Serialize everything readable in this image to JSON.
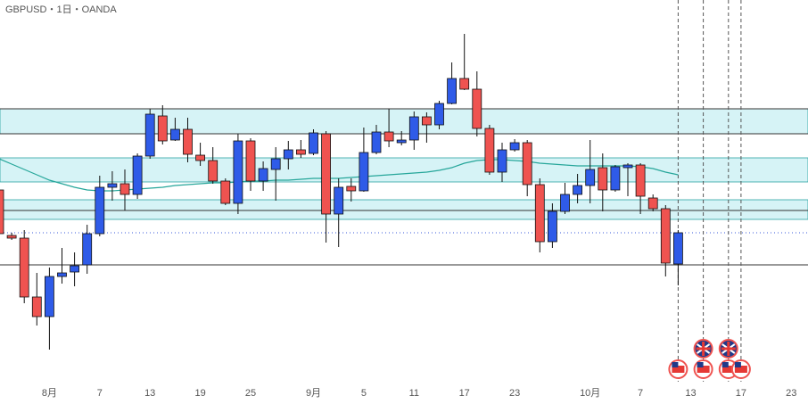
{
  "chart_data": {
    "type": "candlestick",
    "title": "GBPUSD・1日・OANDA",
    "categories": [
      null,
      null,
      null,
      null,
      "8月",
      null,
      null,
      null,
      "7",
      null,
      null,
      null,
      "13",
      null,
      null,
      null,
      "19",
      null,
      null,
      null,
      "25",
      null,
      null,
      null,
      null,
      "9月",
      null,
      null,
      null,
      "5",
      null,
      null,
      null,
      "11",
      null,
      null,
      null,
      "17",
      null,
      null,
      null,
      "23",
      null,
      null,
      null,
      null,
      null,
      "10月",
      null,
      null,
      null,
      "7",
      null,
      null,
      null,
      "13",
      null,
      null,
      null,
      "17",
      null,
      null,
      null,
      "23"
    ],
    "open": [
      1.3074,
      1.2972,
      1.2966,
      1.2834,
      1.279,
      1.288,
      1.289,
      1.2906,
      1.2976,
      1.308,
      1.3088,
      1.3064,
      1.315,
      1.324,
      1.3186,
      1.321,
      1.3152,
      1.314,
      1.3094,
      1.3044,
      1.3184,
      1.3094,
      1.312,
      1.3144,
      1.3164,
      1.3156,
      1.32,
      1.302,
      1.3082,
      1.3072,
      1.3158,
      1.3204,
      1.318,
      1.3186,
      1.3238,
      1.322,
      1.3268,
      1.3324,
      1.33,
      1.3212,
      1.3114,
      1.3164,
      1.318,
      1.3086,
      1.2958,
      1.3026,
      1.3064,
      1.3084,
      1.3124,
      1.3074,
      1.3124,
      1.313,
      1.3056,
      1.3032,
      1.2908,
      null,
      null,
      null,
      null,
      null,
      null,
      null,
      null,
      null
    ],
    "high": [
      1.3084,
      1.2978,
      1.2984,
      1.2888,
      1.29,
      1.2944,
      1.2934,
      1.2996,
      1.3106,
      1.3116,
      1.312,
      1.3156,
      1.3256,
      1.3264,
      1.3236,
      1.3236,
      1.318,
      1.317,
      1.31,
      1.32,
      1.319,
      1.3138,
      1.317,
      1.3184,
      1.3186,
      1.321,
      1.3206,
      1.31,
      1.31,
      1.3214,
      1.322,
      1.3256,
      1.3206,
      1.325,
      1.3248,
      1.3274,
      1.336,
      1.3424,
      1.334,
      1.322,
      1.318,
      1.3188,
      1.3186,
      1.31,
      1.3044,
      1.309,
      1.311,
      1.3186,
      1.3156,
      1.313,
      1.3134,
      1.3134,
      1.3064,
      1.304,
      1.2984,
      null,
      null,
      null,
      null,
      null,
      null,
      null,
      null,
      null
    ],
    "low": [
      1.297,
      1.2962,
      1.282,
      1.277,
      1.2716,
      1.2864,
      1.2858,
      1.2886,
      1.297,
      1.305,
      1.3028,
      1.3054,
      1.3144,
      1.3176,
      1.3184,
      1.3136,
      1.3128,
      1.3088,
      1.304,
      1.302,
      1.3072,
      1.3072,
      1.305,
      1.312,
      1.3146,
      1.3152,
      1.2956,
      1.2946,
      1.3048,
      1.307,
      1.3154,
      1.317,
      1.3174,
      1.3164,
      1.318,
      1.321,
      1.3266,
      1.3298,
      1.3194,
      1.3108,
      1.3092,
      1.316,
      1.306,
      1.2934,
      1.2944,
      1.302,
      1.3044,
      1.3044,
      1.3026,
      1.307,
      1.306,
      1.302,
      1.3026,
      1.288,
      1.286,
      null,
      null,
      null,
      null,
      null,
      null,
      null,
      null,
      null
    ],
    "close": [
      1.2976,
      1.2966,
      1.2834,
      1.279,
      1.288,
      1.2888,
      1.2904,
      1.2976,
      1.308,
      1.3088,
      1.3064,
      1.315,
      1.3244,
      1.3184,
      1.321,
      1.3154,
      1.314,
      1.3094,
      1.3044,
      1.3184,
      1.3094,
      1.3122,
      1.3144,
      1.3164,
      1.3154,
      1.3202,
      1.302,
      1.308,
      1.3072,
      1.3158,
      1.3204,
      1.3184,
      1.3186,
      1.3238,
      1.322,
      1.3268,
      1.3324,
      1.33,
      1.3212,
      1.3114,
      1.3164,
      1.318,
      1.3086,
      1.2958,
      1.3026,
      1.3064,
      1.3084,
      1.312,
      1.3074,
      1.3126,
      1.313,
      1.306,
      1.3032,
      1.291,
      1.2978,
      null,
      null,
      null,
      null,
      null,
      null,
      null,
      null,
      null
    ],
    "ma": [
      1.3144,
      1.3132,
      1.312,
      1.3108,
      1.3096,
      1.3088,
      1.308,
      1.3074,
      1.3072,
      1.3072,
      1.3074,
      1.3076,
      1.3078,
      1.308,
      1.3084,
      1.3086,
      1.3088,
      1.309,
      1.309,
      1.3092,
      1.3094,
      1.3094,
      1.3096,
      1.3096,
      1.3098,
      1.31,
      1.31,
      1.31,
      1.3102,
      1.3104,
      1.3106,
      1.3108,
      1.311,
      1.3112,
      1.3114,
      1.3118,
      1.3124,
      1.3134,
      1.314,
      1.3142,
      1.3142,
      1.314,
      1.3138,
      1.3134,
      1.3132,
      1.313,
      1.3128,
      1.3128,
      1.3128,
      1.3128,
      1.3128,
      1.3126,
      1.3122,
      1.3114,
      1.3108,
      null,
      null,
      null,
      null,
      null,
      null,
      null,
      null,
      null
    ],
    "up_color": "#2f5be8",
    "down_color": "#ef5350",
    "ma_color": "#26a69a",
    "zones": [
      [
        1.3256,
        1.32
      ],
      [
        1.3146,
        1.3092
      ],
      [
        1.3052,
        1.3008
      ]
    ],
    "levels": [
      1.3256,
      1.32,
      1.3028,
      1.2906
    ],
    "last_price": 1.2978,
    "events": [
      54,
      56,
      58,
      59
    ],
    "uk_events": [
      56,
      58
    ],
    "ylim": [
      1.264,
      1.35
    ]
  }
}
